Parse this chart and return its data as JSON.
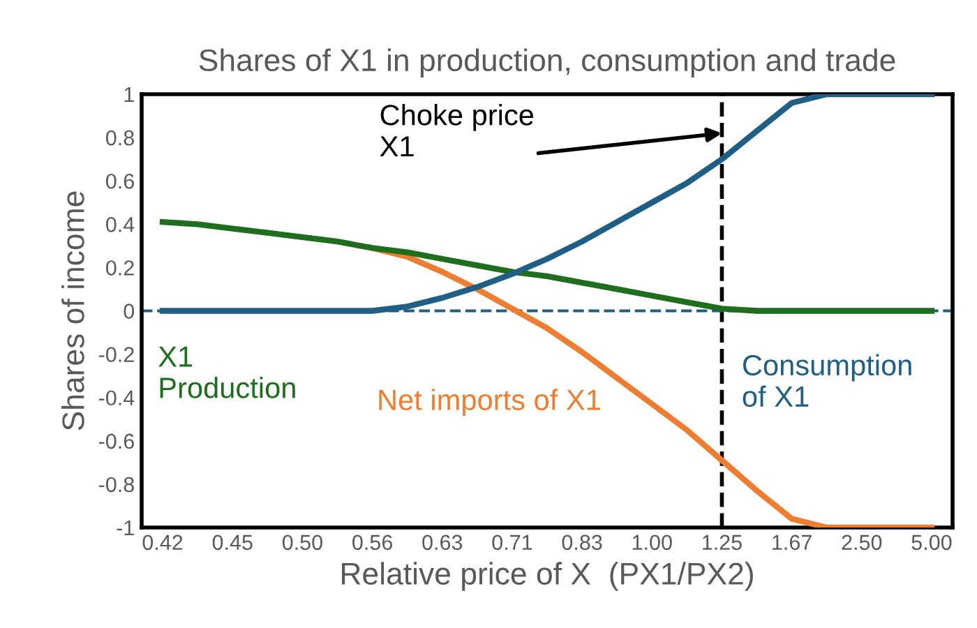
{
  "chart_data": {
    "type": "line",
    "title": "Shares of X1 in production, consumption and trade",
    "xlabel": "Relative price of X  (PX1/PX2)",
    "ylabel": "Shares of income",
    "categories": [
      "0.42",
      null,
      "0.45",
      null,
      "0.50",
      null,
      "0.56",
      null,
      "0.63",
      null,
      "0.71",
      null,
      "0.83",
      null,
      "1.00",
      null,
      "1.25",
      null,
      "1.67",
      null,
      "2.50",
      null,
      "5.00"
    ],
    "series": [
      {
        "name": "Consumption\nof X1",
        "color": "#1f5f86",
        "values": [
          0,
          0,
          0,
          0,
          0,
          0,
          0,
          0.02,
          0.06,
          0.11,
          0.17,
          0.24,
          0.32,
          0.41,
          0.5,
          0.59,
          0.7,
          0.83,
          0.96,
          1,
          1,
          1,
          1
        ]
      },
      {
        "name": "X1\nProduction",
        "color": "#1e6e1e",
        "values": [
          0.41,
          0.4,
          0.38,
          0.36,
          0.34,
          0.32,
          0.29,
          0.27,
          0.24,
          0.21,
          0.18,
          0.16,
          0.13,
          0.1,
          0.07,
          0.04,
          0.01,
          0,
          0,
          0,
          0,
          0,
          0
        ]
      },
      {
        "name": "Net imports of X1",
        "color": "#ed7d31",
        "values": [
          null,
          null,
          null,
          null,
          null,
          null,
          0.29,
          0.25,
          0.18,
          0.1,
          0.01,
          -0.08,
          -0.19,
          -0.31,
          -0.43,
          -0.55,
          -0.69,
          -0.83,
          -0.96,
          -1,
          -1,
          -1,
          -1
        ]
      }
    ],
    "ylim": [
      -1,
      1
    ],
    "yticks": [
      -1,
      -0.8,
      -0.6,
      -0.4,
      -0.2,
      0,
      0.2,
      0.4,
      0.6,
      0.8,
      1
    ],
    "ref_lines": [
      {
        "axis": "x",
        "value": "1.25",
        "color": "#000000",
        "line_style": "dashed"
      },
      {
        "axis": "y",
        "value": 0,
        "color": "#1f5f86",
        "line_style": "dashed"
      }
    ],
    "annotations": [
      {
        "text": "Choke price\nX1",
        "x": "1.25",
        "y": 0.82
      }
    ],
    "grid": false,
    "legend": false,
    "line_style": "solid",
    "marker": "none"
  }
}
